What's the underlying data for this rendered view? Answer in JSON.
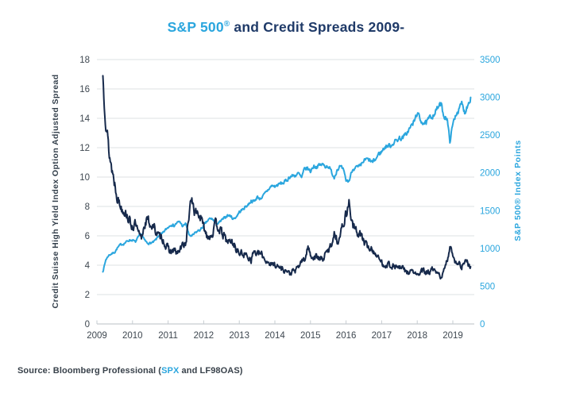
{
  "title": {
    "part1": "S&P 500",
    "registered": "®",
    "part2": " and Credit Spreads 2009-"
  },
  "source": {
    "part1": "Source: Bloomberg Professional (",
    "spx": "SPX",
    "part2": " and LF98OAS)"
  },
  "colors": {
    "accent": "#2BA6DE",
    "navy_line": "#16294B",
    "navy_text": "#1F3A68",
    "tick_text": "#3E4750",
    "axis_label": "#333F4B",
    "grid": "#DCE0E3",
    "axis_line": "#C6CCD1",
    "source_text": "#39424B"
  },
  "chart_data": {
    "type": "line",
    "title": "S&P 500® and Credit Spreads 2009-",
    "legend": "none",
    "grid": "horizontal",
    "x_axis": {
      "ticks": [
        "2009",
        "2010",
        "2011",
        "2012",
        "2013",
        "2014",
        "2015",
        "2016",
        "2017",
        "2018",
        "2019"
      ],
      "start_year": 2009,
      "end_year": 2019.6
    },
    "y_left": {
      "label": "Credit Suisse High Yield Index Option Adjusted Spread",
      "min": 0,
      "max": 18,
      "tick_step": 2,
      "ticks": [
        "0",
        "2",
        "4",
        "6",
        "8",
        "10",
        "12",
        "14",
        "16",
        "18"
      ]
    },
    "y_right": {
      "label": "S&P 500® Index Points",
      "min": 0,
      "max": 3500,
      "tick_step": 500,
      "ticks": [
        "0",
        "500",
        "1000",
        "1500",
        "2000",
        "2500",
        "3000",
        "3500"
      ]
    },
    "series": [
      {
        "name": "S&P 500 Index Points",
        "axis": "right",
        "color": "#2BA6DE",
        "x_monthly_start": "2009-03",
        "x_monthly_end": "2019-07",
        "values": [
          690,
          850,
          910,
          930,
          950,
          1010,
          1050,
          1060,
          1090,
          1110,
          1110,
          1085,
          1150,
          1190,
          1110,
          1070,
          1070,
          1080,
          1120,
          1180,
          1190,
          1240,
          1280,
          1320,
          1300,
          1340,
          1350,
          1290,
          1330,
          1180,
          1160,
          1200,
          1230,
          1250,
          1300,
          1350,
          1390,
          1390,
          1330,
          1330,
          1370,
          1400,
          1440,
          1430,
          1390,
          1420,
          1480,
          1510,
          1550,
          1580,
          1630,
          1620,
          1680,
          1660,
          1690,
          1740,
          1790,
          1830,
          1820,
          1840,
          1860,
          1870,
          1900,
          1950,
          1960,
          1970,
          1990,
          1930,
          2050,
          2060,
          2020,
          2090,
          2080,
          2100,
          2110,
          2090,
          2090,
          2020,
          1940,
          2050,
          2080,
          2040,
          1900,
          1890,
          2030,
          2080,
          2070,
          2090,
          2160,
          2180,
          2160,
          2140,
          2180,
          2250,
          2280,
          2340,
          2360,
          2360,
          2400,
          2430,
          2460,
          2460,
          2500,
          2560,
          2620,
          2680,
          2800,
          2700,
          2670,
          2650,
          2720,
          2750,
          2800,
          2870,
          2910,
          2750,
          2730,
          2420,
          2640,
          2780,
          2830,
          2920,
          2800,
          2900,
          3000
        ]
      },
      {
        "name": "Credit Suisse High Yield Index Option Adjusted Spread",
        "axis": "left",
        "color": "#16294B",
        "x_monthly_start": "2009-03",
        "x_monthly_end": "2019-07",
        "values": [
          16.9,
          14.0,
          11.8,
          10.6,
          9.6,
          8.6,
          8.0,
          7.8,
          7.5,
          7.0,
          6.6,
          6.8,
          6.1,
          5.8,
          6.8,
          7.1,
          6.8,
          6.6,
          6.3,
          5.9,
          5.9,
          5.4,
          5.1,
          4.9,
          5.0,
          4.8,
          5.0,
          5.4,
          5.5,
          7.3,
          8.6,
          7.6,
          7.6,
          7.2,
          6.6,
          6.1,
          6.0,
          6.2,
          6.8,
          6.6,
          6.2,
          5.9,
          5.6,
          5.6,
          5.5,
          5.1,
          4.8,
          4.8,
          4.7,
          4.6,
          4.4,
          5.0,
          4.7,
          4.8,
          4.6,
          4.3,
          4.2,
          4.0,
          4.1,
          3.9,
          3.8,
          3.7,
          3.6,
          3.4,
          3.6,
          3.6,
          3.9,
          4.3,
          4.3,
          5.2,
          4.8,
          4.5,
          4.6,
          4.4,
          4.4,
          4.7,
          5.0,
          5.4,
          6.2,
          5.7,
          6.0,
          6.8,
          7.5,
          8.3,
          6.9,
          6.4,
          6.2,
          6.1,
          5.6,
          5.3,
          5.2,
          5.0,
          4.8,
          4.4,
          4.2,
          4.0,
          4.1,
          4.0,
          3.9,
          3.9,
          3.8,
          3.8,
          3.6,
          3.5,
          3.6,
          3.5,
          3.3,
          3.5,
          3.6,
          3.5,
          3.5,
          3.7,
          3.5,
          3.4,
          3.2,
          3.6,
          4.2,
          5.3,
          4.8,
          4.2,
          4.1,
          3.9,
          4.3,
          4.1,
          3.9
        ]
      }
    ]
  }
}
